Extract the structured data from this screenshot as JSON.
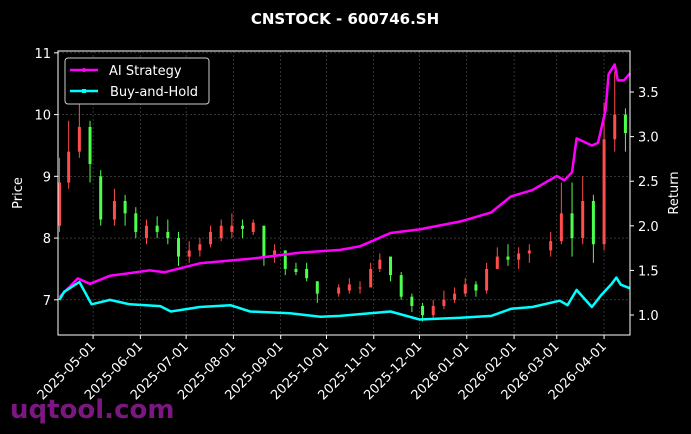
{
  "chart_data": {
    "type": "line",
    "title": "CNSTOCK - 600746.SH",
    "xlabel": "",
    "ylabel_left": "Price",
    "ylabel_right": "Return",
    "xlim": [
      "2025-04-08",
      "2026-04-18"
    ],
    "ylim_left": [
      6.43,
      11.03
    ],
    "ylim_right": [
      0.776,
      3.96
    ],
    "x_ticks": [
      "2025-05-01",
      "2025-06-01",
      "2025-07-01",
      "2025-08-01",
      "2025-09-01",
      "2025-10-01",
      "2025-11-01",
      "2025-12-01",
      "2026-01-01",
      "2026-02-01",
      "2026-03-01",
      "2026-04-01"
    ],
    "y_ticks_left": [
      7,
      8,
      9,
      10,
      11
    ],
    "y_ticks_right": [
      "1.0",
      "1.5",
      "2.0",
      "2.5",
      "3.0",
      "3.5"
    ],
    "grid": true,
    "legend_position": "top-left",
    "colors": {
      "up": "#ff4d4d",
      "down": "#4dff4d",
      "strategy": "#ff00ff",
      "buyhold": "#00ffff",
      "grid": "#555555"
    },
    "candles": [
      [
        "2025-04-09",
        8.2,
        9.3,
        8.1,
        8.9
      ],
      [
        "2025-04-15",
        8.9,
        9.9,
        8.8,
        9.4
      ],
      [
        "2025-04-22",
        9.4,
        10.3,
        9.3,
        9.8
      ],
      [
        "2025-04-29",
        9.8,
        9.9,
        8.9,
        9.2
      ],
      [
        "2025-05-06",
        9.0,
        9.1,
        8.2,
        8.3
      ],
      [
        "2025-05-15",
        8.3,
        8.8,
        8.2,
        8.6
      ],
      [
        "2025-05-22",
        8.6,
        8.7,
        8.2,
        8.4
      ],
      [
        "2025-05-29",
        8.4,
        8.5,
        8.0,
        8.1
      ],
      [
        "2025-06-05",
        8.0,
        8.3,
        7.9,
        8.2
      ],
      [
        "2025-06-12",
        8.2,
        8.35,
        8.0,
        8.1
      ],
      [
        "2025-06-19",
        8.1,
        8.3,
        7.9,
        8.0
      ],
      [
        "2025-06-26",
        8.0,
        8.1,
        7.55,
        7.7
      ],
      [
        "2025-07-03",
        7.7,
        7.95,
        7.6,
        7.8
      ],
      [
        "2025-07-10",
        7.8,
        8.0,
        7.7,
        7.9
      ],
      [
        "2025-07-17",
        7.9,
        8.2,
        7.85,
        8.1
      ],
      [
        "2025-07-24",
        8.0,
        8.3,
        7.95,
        8.2
      ],
      [
        "2025-07-31",
        8.1,
        8.4,
        8.0,
        8.2
      ],
      [
        "2025-08-07",
        8.2,
        8.3,
        8.0,
        8.15
      ],
      [
        "2025-08-14",
        8.1,
        8.3,
        8.05,
        8.25
      ],
      [
        "2025-08-21",
        8.2,
        8.2,
        7.55,
        7.7
      ],
      [
        "2025-08-28",
        7.7,
        7.9,
        7.6,
        7.8
      ],
      [
        "2025-09-04",
        7.8,
        7.8,
        7.4,
        7.5
      ],
      [
        "2025-09-11",
        7.5,
        7.6,
        7.4,
        7.45
      ],
      [
        "2025-09-18",
        7.5,
        7.6,
        7.3,
        7.35
      ],
      [
        "2025-09-25",
        7.3,
        7.3,
        6.95,
        7.1
      ],
      [
        "2025-10-09",
        7.1,
        7.25,
        7.05,
        7.2
      ],
      [
        "2025-10-16",
        7.15,
        7.35,
        7.1,
        7.25
      ],
      [
        "2025-10-23",
        7.2,
        7.3,
        7.1,
        7.2
      ],
      [
        "2025-10-30",
        7.2,
        7.6,
        7.2,
        7.5
      ],
      [
        "2025-11-05",
        7.5,
        7.75,
        7.45,
        7.65
      ],
      [
        "2025-11-12",
        7.7,
        7.7,
        7.3,
        7.4
      ],
      [
        "2025-11-19",
        7.4,
        7.45,
        7.0,
        7.05
      ],
      [
        "2025-11-26",
        7.05,
        7.1,
        6.8,
        6.9
      ],
      [
        "2025-12-03",
        6.9,
        6.95,
        6.65,
        6.75
      ],
      [
        "2025-12-10",
        6.75,
        7.0,
        6.7,
        6.9
      ],
      [
        "2025-12-17",
        6.9,
        7.15,
        6.85,
        7.0
      ],
      [
        "2025-12-24",
        7.0,
        7.2,
        6.95,
        7.1
      ],
      [
        "2025-12-31",
        7.1,
        7.35,
        7.05,
        7.25
      ],
      [
        "2026-01-07",
        7.25,
        7.3,
        7.05,
        7.15
      ],
      [
        "2026-01-14",
        7.15,
        7.6,
        7.1,
        7.5
      ],
      [
        "2026-01-21",
        7.5,
        7.85,
        7.5,
        7.7
      ],
      [
        "2026-01-28",
        7.7,
        7.9,
        7.55,
        7.65
      ],
      [
        "2026-02-04",
        7.65,
        7.85,
        7.5,
        7.75
      ],
      [
        "2026-02-11",
        7.75,
        7.9,
        7.6,
        7.8
      ],
      [
        "2026-02-25",
        7.8,
        8.1,
        7.7,
        7.95
      ],
      [
        "2026-03-04",
        7.95,
        8.9,
        7.9,
        8.4
      ],
      [
        "2026-03-11",
        8.4,
        8.9,
        7.7,
        8.0
      ],
      [
        "2026-03-18",
        8.0,
        9.0,
        7.9,
        8.6
      ],
      [
        "2026-03-25",
        8.6,
        8.7,
        7.6,
        7.9
      ],
      [
        "2026-04-01",
        7.9,
        10.2,
        7.8,
        9.6
      ],
      [
        "2026-04-08",
        9.6,
        10.7,
        9.4,
        10.0
      ],
      [
        "2026-04-15",
        10.0,
        10.1,
        9.4,
        9.7
      ]
    ],
    "series": [
      {
        "name": "AI Strategy",
        "x": [
          "2025-04-09",
          "2025-04-21",
          "2025-04-29",
          "2025-05-12",
          "2025-06-07",
          "2025-06-17",
          "2025-07-10",
          "2025-08-12",
          "2025-09-14",
          "2025-10-10",
          "2025-10-23",
          "2025-11-12",
          "2025-12-01",
          "2025-12-28",
          "2026-01-17",
          "2026-01-30",
          "2026-02-13",
          "2026-03-01",
          "2026-03-06",
          "2026-03-11",
          "2026-03-14",
          "2026-03-24",
          "2026-03-28",
          "2026-04-02",
          "2026-04-04",
          "2026-04-08",
          "2026-04-10",
          "2026-04-14",
          "2026-04-18"
        ],
        "values": [
          1.2,
          1.41,
          1.35,
          1.44,
          1.5,
          1.48,
          1.58,
          1.63,
          1.7,
          1.73,
          1.77,
          1.92,
          1.96,
          2.05,
          2.15,
          2.33,
          2.4,
          2.56,
          2.51,
          2.6,
          2.98,
          2.9,
          2.93,
          3.3,
          3.7,
          3.81,
          3.63,
          3.63,
          3.71
        ]
      },
      {
        "name": "Buy-and-Hold",
        "x": [
          "2025-04-09",
          "2025-04-12",
          "2025-04-22",
          "2025-04-30",
          "2025-05-12",
          "2025-05-25",
          "2025-06-14",
          "2025-06-21",
          "2025-07-10",
          "2025-07-30",
          "2025-08-12",
          "2025-09-07",
          "2025-09-27",
          "2025-10-10",
          "2025-10-23",
          "2025-11-12",
          "2025-12-01",
          "2025-12-28",
          "2026-01-17",
          "2026-01-30",
          "2026-02-13",
          "2026-03-03",
          "2026-03-08",
          "2026-03-14",
          "2026-03-24",
          "2026-03-30",
          "2026-04-06",
          "2026-04-09",
          "2026-04-12",
          "2026-04-18"
        ],
        "values": [
          1.17,
          1.26,
          1.37,
          1.12,
          1.17,
          1.12,
          1.1,
          1.04,
          1.09,
          1.11,
          1.04,
          1.02,
          0.98,
          0.99,
          1.01,
          1.04,
          0.95,
          0.97,
          0.99,
          1.07,
          1.09,
          1.16,
          1.11,
          1.28,
          1.09,
          1.22,
          1.35,
          1.42,
          1.34,
          1.3
        ]
      }
    ]
  },
  "watermark": "uqtool.com"
}
